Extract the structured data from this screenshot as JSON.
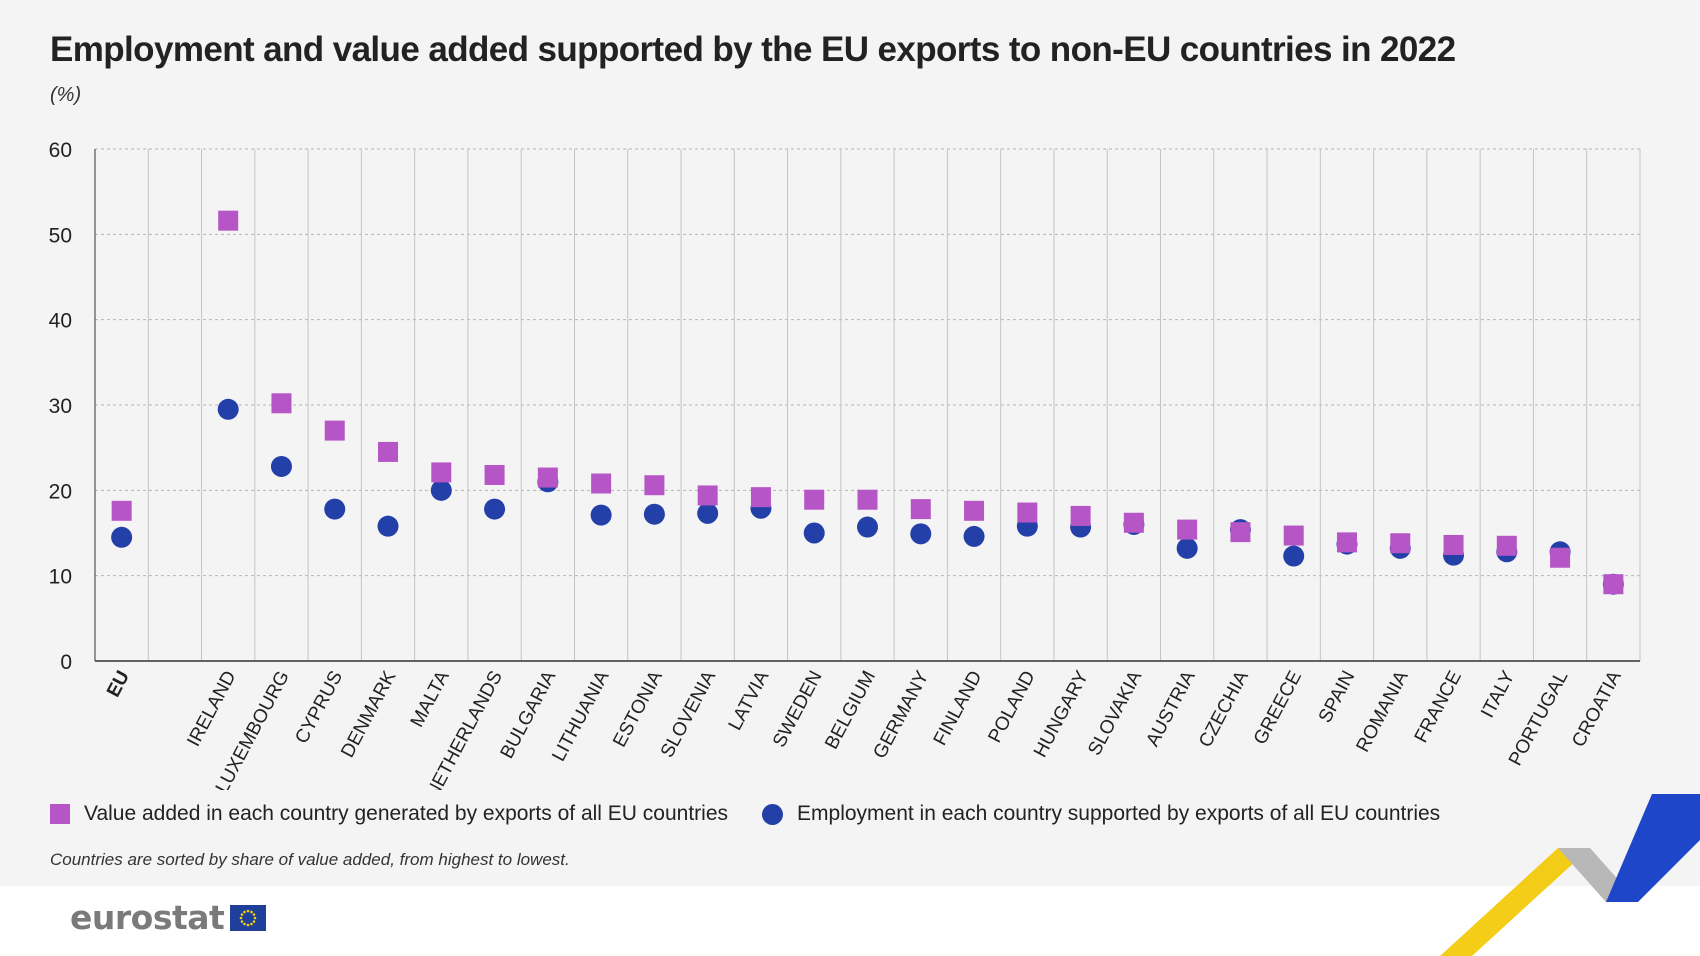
{
  "title": "Employment and value added supported by the EU exports to non-EU countries in 2022",
  "subtitle": "(%)",
  "legend": {
    "value_added": "Value added in each country generated by exports of all EU countries",
    "employment": "Employment in each country supported by exports of all EU countries"
  },
  "footnote": "Countries are sorted by share of value added, from highest to lowest.",
  "logo_text": "eurostat",
  "colors": {
    "value_added": "#b656c6",
    "employment": "#233fa8",
    "background": "#f4f4f4"
  },
  "chart_data": {
    "type": "scatter",
    "ylim": [
      0,
      60
    ],
    "yticks": [
      0,
      10,
      20,
      30,
      40,
      50,
      60
    ],
    "grid": true,
    "legend_position": "bottom",
    "categories": [
      "EU",
      "",
      "IRELAND",
      "LUXEMBOURG",
      "CYPRUS",
      "DENMARK",
      "MALTA",
      "NETHERLANDS",
      "BULGARIA",
      "LITHUANIA",
      "ESTONIA",
      "SLOVENIA",
      "LATVIA",
      "SWEDEN",
      "BELGIUM",
      "GERMANY",
      "FINLAND",
      "POLAND",
      "HUNGARY",
      "SLOVAKIA",
      "AUSTRIA",
      "CZECHIA",
      "GREECE",
      "SPAIN",
      "ROMANIA",
      "FRANCE",
      "ITALY",
      "PORTUGAL",
      "CROATIA"
    ],
    "series": [
      {
        "name": "Value added in each country generated by exports of all EU countries",
        "marker": "square",
        "values": [
          17.6,
          null,
          51.6,
          30.2,
          27.0,
          24.5,
          22.1,
          21.8,
          21.5,
          20.8,
          20.6,
          19.4,
          19.2,
          18.9,
          18.9,
          17.8,
          17.6,
          17.4,
          17.0,
          16.2,
          15.4,
          15.1,
          14.7,
          13.9,
          13.8,
          13.6,
          13.5,
          12.1,
          9.0
        ]
      },
      {
        "name": "Employment in each country supported by exports of all EU countries",
        "marker": "circle",
        "values": [
          14.5,
          null,
          29.5,
          22.8,
          17.8,
          15.8,
          20.0,
          17.8,
          21.0,
          17.1,
          17.2,
          17.3,
          17.9,
          15.0,
          15.7,
          14.9,
          14.6,
          15.8,
          15.7,
          16.0,
          13.2,
          15.4,
          12.3,
          13.7,
          13.2,
          12.4,
          12.8,
          12.8,
          9.0
        ]
      }
    ]
  }
}
